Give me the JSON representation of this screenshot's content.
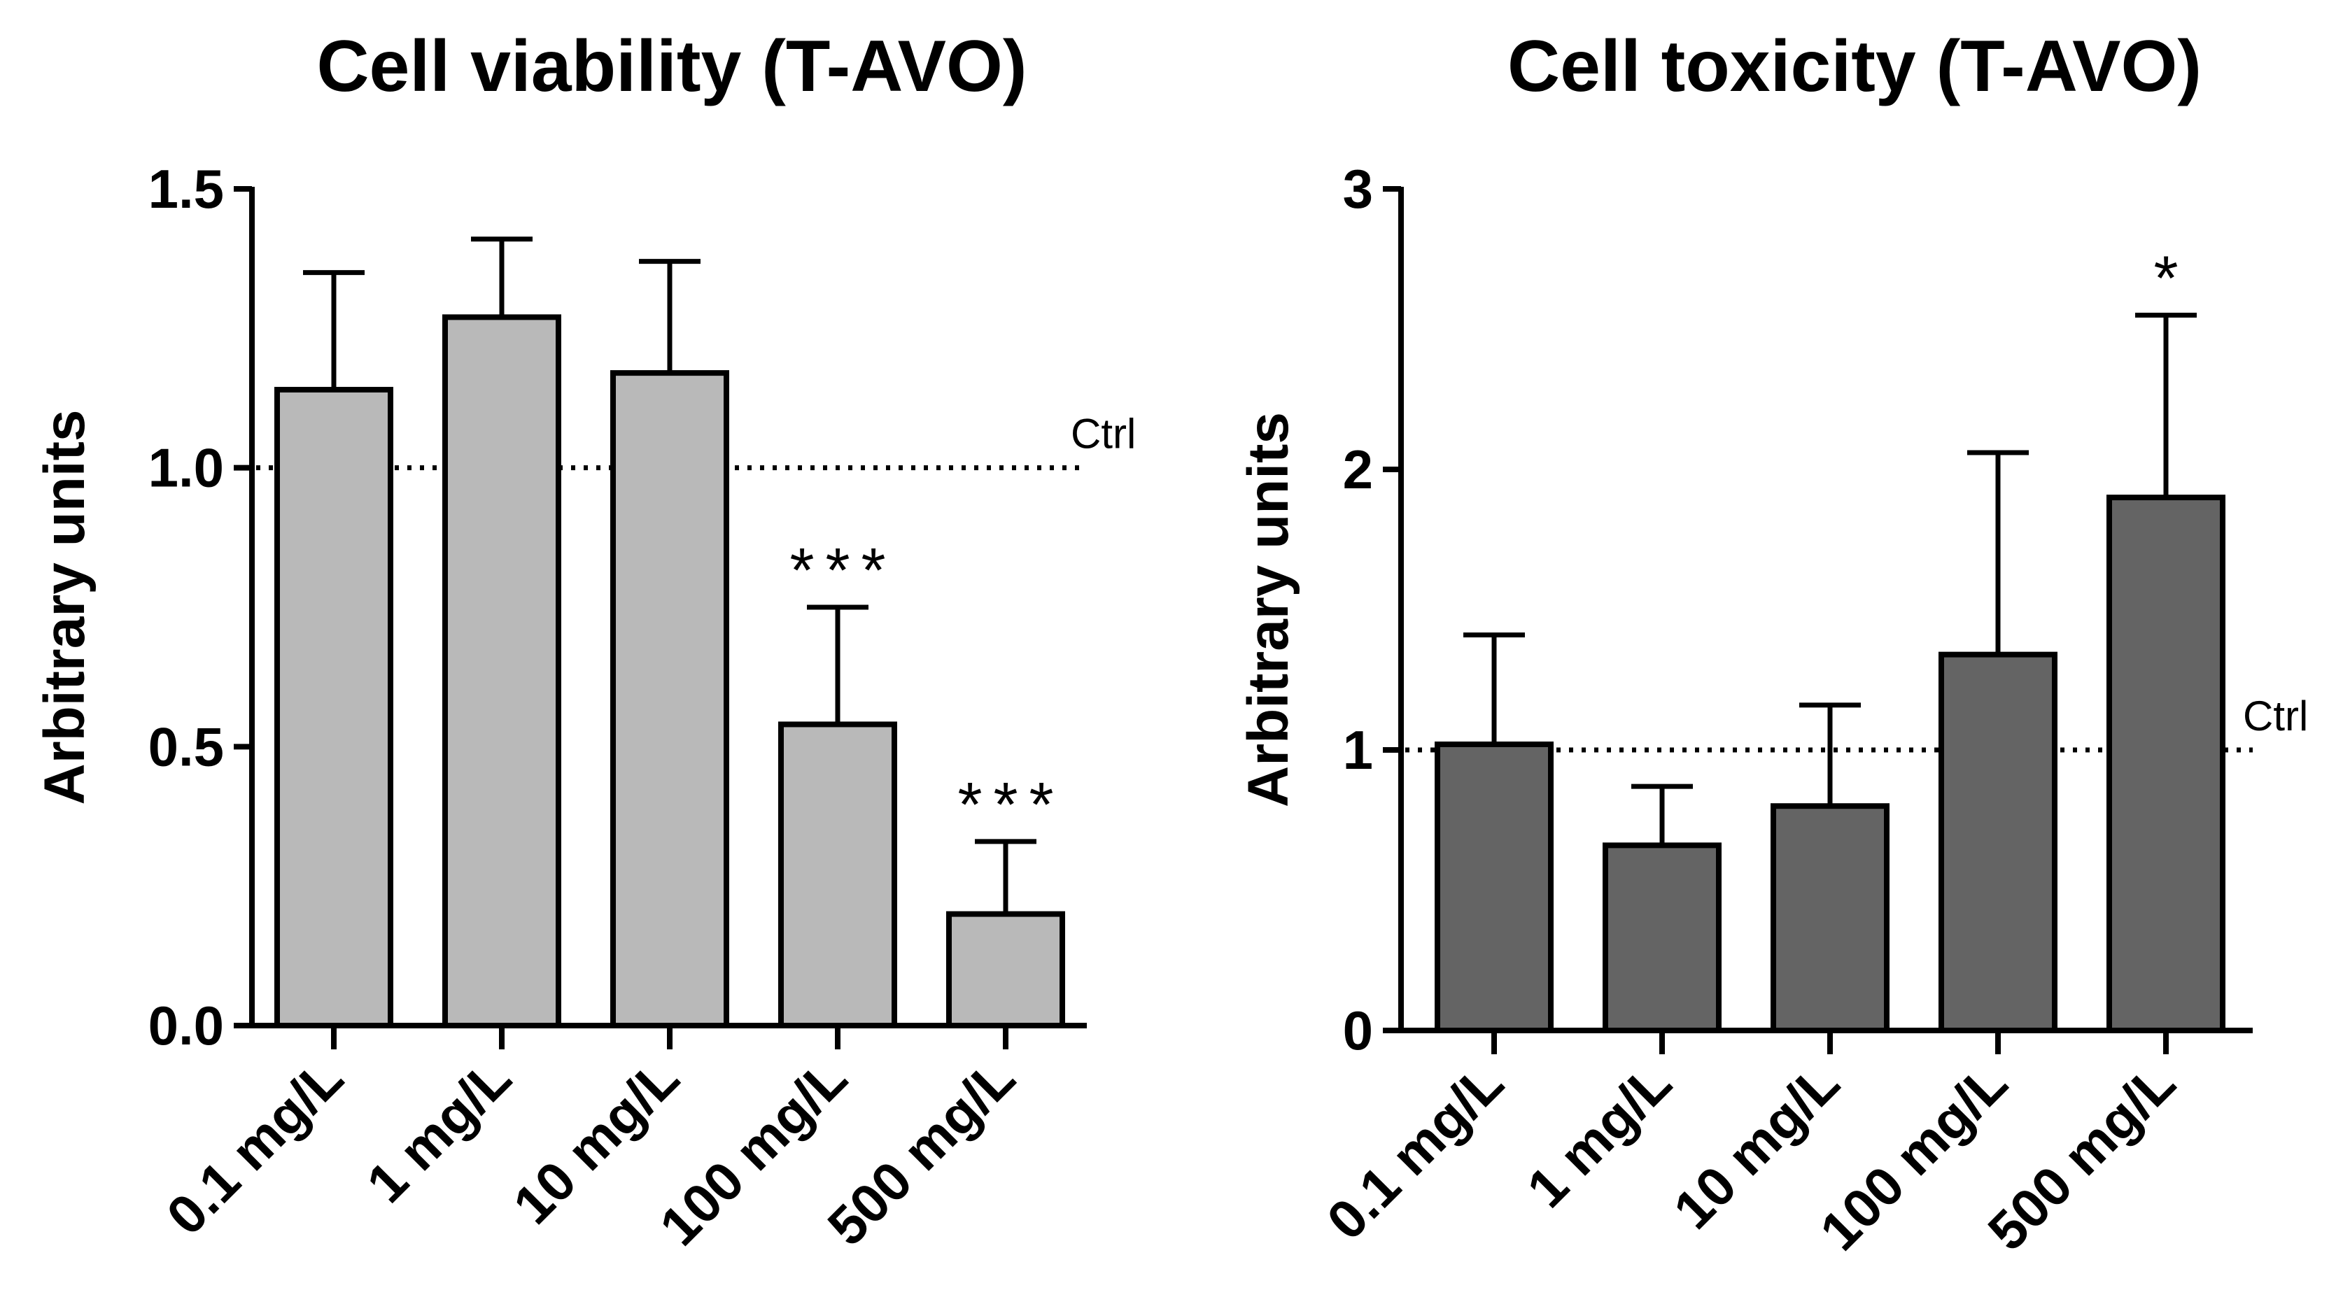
{
  "chart_data": [
    {
      "type": "bar",
      "title": "Cell viability (T-AVO)",
      "xlabel": "",
      "ylabel": "Arbitrary units",
      "categories": [
        "0.1 mg/L",
        "1 mg/L",
        "10 mg/L",
        "100 mg/L",
        "500 mg/L"
      ],
      "values": [
        1.14,
        1.27,
        1.17,
        0.54,
        0.2
      ],
      "error_upper": [
        1.35,
        1.41,
        1.37,
        0.75,
        0.33
      ],
      "significance": [
        "",
        "",
        "",
        "***",
        "***"
      ],
      "ylim": [
        0,
        1.5
      ],
      "yticks": [
        "0.0",
        "0.5",
        "1.0",
        "1.5"
      ],
      "ytick_values": [
        0,
        0.5,
        1.0,
        1.5
      ],
      "reference_line": {
        "value": 1.0,
        "label": "Ctrl"
      },
      "bar_color": "#b9b9b9",
      "grid": false
    },
    {
      "type": "bar",
      "title": "Cell toxicity (T-AVO)",
      "xlabel": "",
      "ylabel": "Arbitrary units",
      "categories": [
        "0.1 mg/L",
        "1 mg/L",
        "10 mg/L",
        "100 mg/L",
        "500 mg/L"
      ],
      "values": [
        1.02,
        0.66,
        0.8,
        1.34,
        1.9
      ],
      "error_upper": [
        1.41,
        0.87,
        1.16,
        2.06,
        2.55
      ],
      "significance": [
        "",
        "",
        "",
        "",
        "*"
      ],
      "ylim": [
        0,
        3
      ],
      "yticks": [
        "0",
        "1",
        "2",
        "3"
      ],
      "ytick_values": [
        0,
        1,
        2,
        3
      ],
      "reference_line": {
        "value": 1.0,
        "label": "Ctrl"
      },
      "bar_color": "#646464",
      "grid": false
    }
  ]
}
